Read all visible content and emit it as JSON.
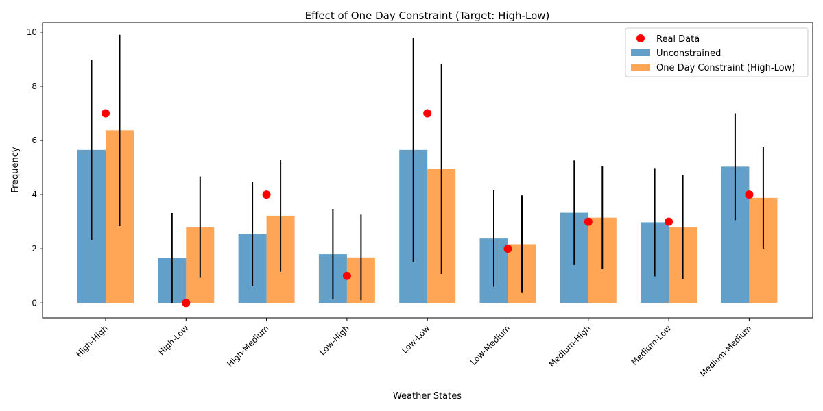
{
  "chart_data": {
    "type": "bar",
    "title": "Effect of One Day Constraint (Target: High-Low)",
    "xlabel": "Weather States",
    "ylabel": "Frequency",
    "ylim": [
      -0.55,
      10.35
    ],
    "yticks": [
      0,
      2,
      4,
      6,
      8,
      10
    ],
    "grid": false,
    "legend_position": "top-right",
    "categories": [
      "High-High",
      "High-Low",
      "High-Medium",
      "Low-High",
      "Low-Low",
      "Low-Medium",
      "Medium-High",
      "Medium-Low",
      "Medium-Medium"
    ],
    "series": [
      {
        "name": "Unconstrained",
        "kind": "bar",
        "color": "#1f77b4",
        "opacity": 0.7,
        "values": [
          5.65,
          1.65,
          2.55,
          1.8,
          5.65,
          2.38,
          3.33,
          2.98,
          5.03
        ],
        "error": [
          3.33,
          1.67,
          1.92,
          1.67,
          4.13,
          1.78,
          1.93,
          2.0,
          1.97
        ]
      },
      {
        "name": "One Day Constraint (High-Low)",
        "kind": "bar",
        "color": "#ff7f0e",
        "opacity": 0.7,
        "values": [
          6.37,
          2.8,
          3.22,
          1.68,
          4.95,
          2.17,
          3.15,
          2.8,
          3.88
        ],
        "error": [
          3.53,
          1.87,
          2.07,
          1.58,
          3.88,
          1.8,
          1.9,
          1.92,
          1.88
        ]
      },
      {
        "name": "Real Data",
        "kind": "point",
        "color": "#ff0000",
        "values": [
          7,
          0,
          4,
          1,
          7,
          2,
          3,
          3,
          4
        ]
      }
    ]
  }
}
